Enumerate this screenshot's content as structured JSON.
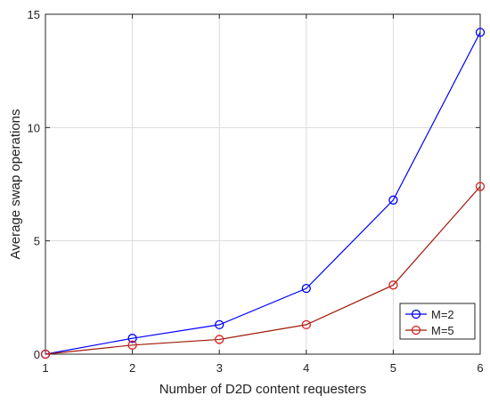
{
  "chart_data": {
    "type": "line",
    "title": "",
    "xlabel": "Number of D2D content requesters",
    "ylabel": "Average swap operations",
    "x": [
      1,
      2,
      3,
      4,
      5,
      6
    ],
    "xlim": [
      1,
      6
    ],
    "ylim": [
      0,
      15
    ],
    "xticks": [
      1,
      2,
      3,
      4,
      5,
      6
    ],
    "yticks": [
      0,
      5,
      10,
      15
    ],
    "grid": true,
    "legend_position": "bottom-right",
    "series": [
      {
        "name": "M=2",
        "color": "#0000ff",
        "marker": "circle",
        "values": [
          0,
          0.7,
          1.3,
          2.9,
          6.8,
          14.2
        ]
      },
      {
        "name": "M=5",
        "color": "#a01a0a",
        "marker_color": "#e02020",
        "marker": "circle",
        "values": [
          0,
          0.4,
          0.65,
          1.3,
          3.05,
          7.4
        ]
      }
    ]
  }
}
